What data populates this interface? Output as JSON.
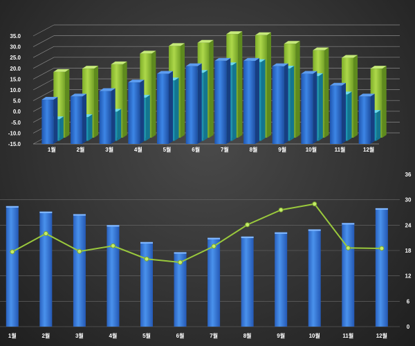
{
  "chart_data": [
    {
      "type": "bar",
      "style": "3d-clustered-columns",
      "title": "",
      "categories": [
        "1월",
        "2월",
        "3월",
        "4월",
        "5월",
        "6월",
        "7월",
        "8월",
        "9월",
        "10월",
        "11월",
        "12월"
      ],
      "ylim": [
        -15,
        35
      ],
      "yticks": [
        "35.0",
        "30.0",
        "25.0",
        "20.0",
        "15.0",
        "10.0",
        "5.0",
        "0.0",
        "-5.0",
        "-10.0",
        "-15.0"
      ],
      "grid": true,
      "series": [
        {
          "color": "#2e6fd0",
          "values": [
            5.5,
            7.0,
            9.5,
            13.5,
            17.5,
            21.0,
            23.5,
            23.5,
            21.0,
            17.5,
            12.0,
            7.0
          ]
        },
        {
          "color": "#2fb5d0",
          "values": [
            -5.0,
            -4.0,
            -1.5,
            5.0,
            13.0,
            16.5,
            20.0,
            21.5,
            18.5,
            15.0,
            6.5,
            -2.0
          ]
        },
        {
          "color": "#9ac93c",
          "values": [
            15.5,
            17.0,
            19.0,
            24.0,
            27.5,
            29.0,
            33.0,
            32.5,
            28.5,
            25.5,
            22.0,
            17.0
          ]
        }
      ]
    },
    {
      "type": "bar+line",
      "title": "",
      "categories": [
        "1월",
        "2월",
        "3월",
        "4월",
        "5월",
        "6월",
        "7월",
        "8월",
        "9월",
        "10월",
        "11월",
        "12월"
      ],
      "ylim": [
        0,
        36
      ],
      "yticks": [
        "36",
        "30",
        "24",
        "18",
        "12",
        "6",
        "0"
      ],
      "right_axis": true,
      "grid": true,
      "series": [
        {
          "type": "bar",
          "color": "#3478d8",
          "values": [
            28.5,
            27.2,
            26.6,
            24.0,
            20.0,
            17.6,
            21.0,
            21.3,
            22.3,
            23.0,
            24.5,
            28.0
          ]
        },
        {
          "type": "line",
          "color": "#9ac93c",
          "values": [
            17.7,
            22.0,
            17.8,
            19.1,
            16.0,
            15.2,
            19.0,
            24.1,
            27.6,
            29.0,
            18.6,
            18.5
          ]
        }
      ]
    }
  ]
}
